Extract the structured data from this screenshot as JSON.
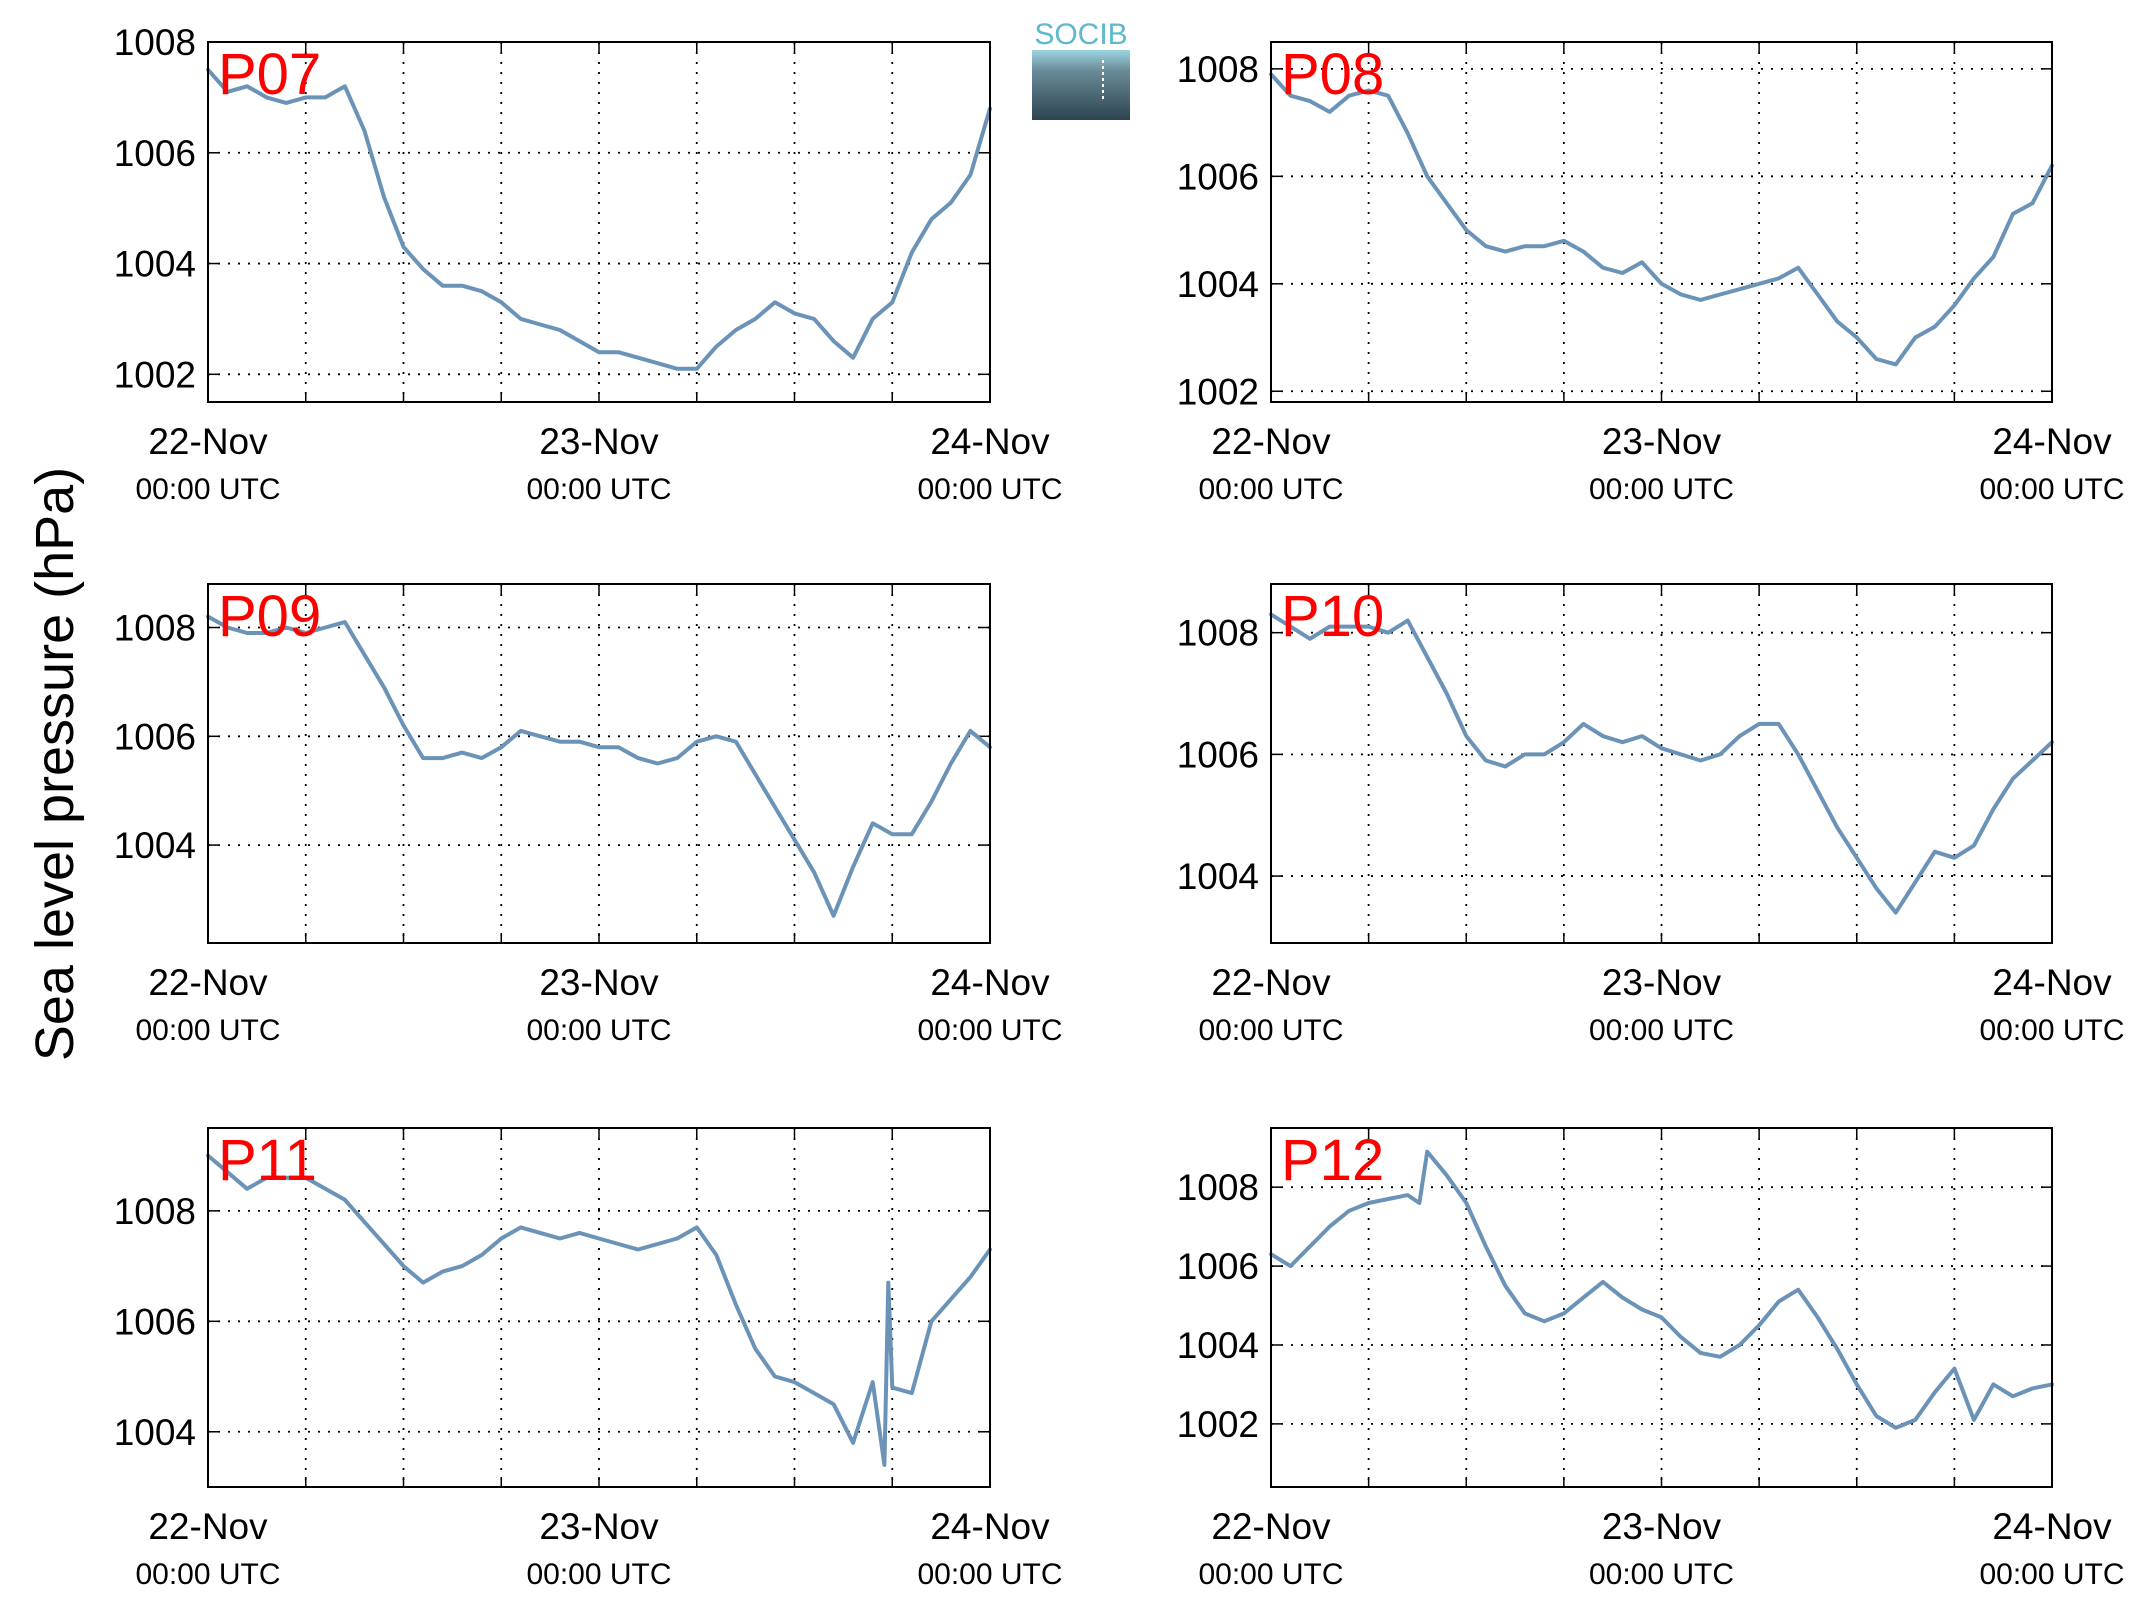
{
  "ylabel": "Sea level pressure (hPa)",
  "logo": {
    "text": "SOCIB",
    "colors": {
      "text": "#5fb8cc",
      "top": "#8fd0dc",
      "bottom": "#2e4450"
    }
  },
  "colors": {
    "series": "#6b93b8",
    "label": "#ff0000",
    "axis": "#000000",
    "grid": "#000000"
  },
  "chart_data": [
    {
      "type": "line",
      "title": "P07",
      "ylim": [
        1001.5,
        1008
      ],
      "yticks": [
        1002,
        1004,
        1006,
        1008
      ],
      "grid": "dotted",
      "xunit": "days since 22-Nov 00:00 UTC",
      "xticks": [
        {
          "date": "22-Nov",
          "time": "00:00 UTC"
        },
        {
          "date": "23-Nov",
          "time": "00:00 UTC"
        },
        {
          "date": "24-Nov",
          "time": "00:00 UTC"
        }
      ],
      "series": [
        {
          "x": [
            0,
            0.05,
            0.1,
            0.15,
            0.2,
            0.25,
            0.3,
            0.35,
            0.4,
            0.45,
            0.5,
            0.55,
            0.6,
            0.65,
            0.7,
            0.75,
            0.8,
            0.85,
            0.9,
            0.95,
            1.0,
            1.05,
            1.1,
            1.15,
            1.2,
            1.25,
            1.3,
            1.35,
            1.4,
            1.45,
            1.5,
            1.55,
            1.6,
            1.65,
            1.7,
            1.75,
            1.8,
            1.85,
            1.9,
            1.95,
            2.0
          ],
          "y": [
            1007.5,
            1007.1,
            1007.2,
            1007.0,
            1006.9,
            1007.0,
            1007.0,
            1007.2,
            1006.4,
            1005.2,
            1004.3,
            1003.9,
            1003.6,
            1003.6,
            1003.5,
            1003.3,
            1003.0,
            1002.9,
            1002.8,
            1002.6,
            1002.4,
            1002.4,
            1002.3,
            1002.2,
            1002.1,
            1002.1,
            1002.5,
            1002.8,
            1003.0,
            1003.3,
            1003.1,
            1003.0,
            1002.6,
            1002.3,
            1003.0,
            1003.3,
            1004.2,
            1004.8,
            1005.1,
            1005.6,
            1006.8
          ]
        }
      ]
    },
    {
      "type": "line",
      "title": "P08",
      "ylim": [
        1001.8,
        1008.5
      ],
      "yticks": [
        1002,
        1004,
        1006,
        1008
      ],
      "grid": "dotted",
      "xunit": "days since 22-Nov 00:00 UTC",
      "xticks": [
        {
          "date": "22-Nov",
          "time": "00:00 UTC"
        },
        {
          "date": "23-Nov",
          "time": "00:00 UTC"
        },
        {
          "date": "24-Nov",
          "time": "00:00 UTC"
        }
      ],
      "series": [
        {
          "x": [
            0,
            0.05,
            0.1,
            0.15,
            0.2,
            0.25,
            0.3,
            0.35,
            0.4,
            0.45,
            0.5,
            0.55,
            0.6,
            0.65,
            0.7,
            0.75,
            0.8,
            0.85,
            0.9,
            0.95,
            1.0,
            1.05,
            1.1,
            1.15,
            1.2,
            1.25,
            1.3,
            1.35,
            1.4,
            1.45,
            1.5,
            1.55,
            1.6,
            1.65,
            1.7,
            1.75,
            1.8,
            1.85,
            1.9,
            1.95,
            2.0
          ],
          "y": [
            1007.9,
            1007.5,
            1007.4,
            1007.2,
            1007.5,
            1007.6,
            1007.5,
            1006.8,
            1006.0,
            1005.5,
            1005.0,
            1004.7,
            1004.6,
            1004.7,
            1004.7,
            1004.8,
            1004.6,
            1004.3,
            1004.2,
            1004.4,
            1004.0,
            1003.8,
            1003.7,
            1003.8,
            1003.9,
            1004.0,
            1004.1,
            1004.3,
            1003.8,
            1003.3,
            1003.0,
            1002.6,
            1002.5,
            1003.0,
            1003.2,
            1003.6,
            1004.1,
            1004.5,
            1005.3,
            1005.5,
            1006.2
          ]
        }
      ]
    },
    {
      "type": "line",
      "title": "P09",
      "ylim": [
        1002.2,
        1008.8
      ],
      "yticks": [
        1004,
        1006,
        1008
      ],
      "grid": "dotted",
      "xunit": "days since 22-Nov 00:00 UTC",
      "xticks": [
        {
          "date": "22-Nov",
          "time": "00:00 UTC"
        },
        {
          "date": "23-Nov",
          "time": "00:00 UTC"
        },
        {
          "date": "24-Nov",
          "time": "00:00 UTC"
        }
      ],
      "series": [
        {
          "x": [
            0,
            0.05,
            0.1,
            0.15,
            0.2,
            0.25,
            0.3,
            0.35,
            0.4,
            0.45,
            0.5,
            0.55,
            0.6,
            0.65,
            0.7,
            0.75,
            0.8,
            0.85,
            0.9,
            0.95,
            1.0,
            1.05,
            1.1,
            1.15,
            1.2,
            1.25,
            1.3,
            1.35,
            1.4,
            1.45,
            1.5,
            1.55,
            1.6,
            1.65,
            1.7,
            1.75,
            1.8,
            1.85,
            1.9,
            1.95,
            2.0
          ],
          "y": [
            1008.2,
            1008.0,
            1007.9,
            1007.9,
            1008.0,
            1007.9,
            1008.0,
            1008.1,
            1007.5,
            1006.9,
            1006.2,
            1005.6,
            1005.6,
            1005.7,
            1005.6,
            1005.8,
            1006.1,
            1006.0,
            1005.9,
            1005.9,
            1005.8,
            1005.8,
            1005.6,
            1005.5,
            1005.6,
            1005.9,
            1006.0,
            1005.9,
            1005.3,
            1004.7,
            1004.1,
            1003.5,
            1002.7,
            1003.6,
            1004.4,
            1004.2,
            1004.2,
            1004.8,
            1005.5,
            1006.1,
            1005.8
          ]
        }
      ]
    },
    {
      "type": "line",
      "title": "P10",
      "ylim": [
        1002.9,
        1008.8
      ],
      "yticks": [
        1004,
        1006,
        1008
      ],
      "grid": "dotted",
      "xunit": "days since 22-Nov 00:00 UTC",
      "xticks": [
        {
          "date": "22-Nov",
          "time": "00:00 UTC"
        },
        {
          "date": "23-Nov",
          "time": "00:00 UTC"
        },
        {
          "date": "24-Nov",
          "time": "00:00 UTC"
        }
      ],
      "series": [
        {
          "x": [
            0,
            0.05,
            0.1,
            0.15,
            0.2,
            0.25,
            0.3,
            0.35,
            0.4,
            0.45,
            0.5,
            0.55,
            0.6,
            0.65,
            0.7,
            0.75,
            0.8,
            0.85,
            0.9,
            0.95,
            1.0,
            1.05,
            1.1,
            1.15,
            1.2,
            1.25,
            1.3,
            1.35,
            1.4,
            1.45,
            1.5,
            1.55,
            1.6,
            1.65,
            1.7,
            1.75,
            1.8,
            1.85,
            1.9,
            1.95,
            2.0
          ],
          "y": [
            1008.3,
            1008.1,
            1007.9,
            1008.1,
            1008.1,
            1008.1,
            1008.0,
            1008.2,
            1007.6,
            1007.0,
            1006.3,
            1005.9,
            1005.8,
            1006.0,
            1006.0,
            1006.2,
            1006.5,
            1006.3,
            1006.2,
            1006.3,
            1006.1,
            1006.0,
            1005.9,
            1006.0,
            1006.3,
            1006.5,
            1006.5,
            1006.0,
            1005.4,
            1004.8,
            1004.3,
            1003.8,
            1003.4,
            1003.9,
            1004.4,
            1004.3,
            1004.5,
            1005.1,
            1005.6,
            1005.9,
            1006.2
          ]
        }
      ]
    },
    {
      "type": "line",
      "title": "P11",
      "ylim": [
        1003,
        1009.5
      ],
      "yticks": [
        1004,
        1006,
        1008
      ],
      "grid": "dotted",
      "xunit": "days since 22-Nov 00:00 UTC",
      "xticks": [
        {
          "date": "22-Nov",
          "time": "00:00 UTC"
        },
        {
          "date": "23-Nov",
          "time": "00:00 UTC"
        },
        {
          "date": "24-Nov",
          "time": "00:00 UTC"
        }
      ],
      "series": [
        {
          "x": [
            0,
            0.05,
            0.1,
            0.15,
            0.2,
            0.25,
            0.3,
            0.35,
            0.4,
            0.45,
            0.5,
            0.55,
            0.6,
            0.65,
            0.7,
            0.75,
            0.8,
            0.85,
            0.9,
            0.95,
            1.0,
            1.05,
            1.1,
            1.15,
            1.2,
            1.25,
            1.3,
            1.35,
            1.4,
            1.45,
            1.5,
            1.55,
            1.6,
            1.65,
            1.7,
            1.73,
            1.74,
            1.75,
            1.8,
            1.85,
            1.9,
            1.95,
            2.0
          ],
          "y": [
            1009.0,
            1008.7,
            1008.4,
            1008.6,
            1008.6,
            1008.6,
            1008.4,
            1008.2,
            1007.8,
            1007.4,
            1007.0,
            1006.7,
            1006.9,
            1007.0,
            1007.2,
            1007.5,
            1007.7,
            1007.6,
            1007.5,
            1007.6,
            1007.5,
            1007.4,
            1007.3,
            1007.4,
            1007.5,
            1007.7,
            1007.2,
            1006.3,
            1005.5,
            1005.0,
            1004.9,
            1004.7,
            1004.5,
            1003.8,
            1004.9,
            1003.4,
            1006.7,
            1004.8,
            1004.7,
            1006.0,
            1006.4,
            1006.8,
            1007.3
          ]
        }
      ]
    },
    {
      "type": "line",
      "title": "P12",
      "ylim": [
        1000.4,
        1009.5
      ],
      "yticks": [
        1002,
        1004,
        1006,
        1008
      ],
      "grid": "dotted",
      "xunit": "days since 22-Nov 00:00 UTC",
      "xticks": [
        {
          "date": "22-Nov",
          "time": "00:00 UTC"
        },
        {
          "date": "23-Nov",
          "time": "00:00 UTC"
        },
        {
          "date": "24-Nov",
          "time": "00:00 UTC"
        }
      ],
      "series": [
        {
          "x": [
            0,
            0.05,
            0.1,
            0.15,
            0.2,
            0.25,
            0.3,
            0.35,
            0.38,
            0.4,
            0.45,
            0.5,
            0.55,
            0.6,
            0.65,
            0.7,
            0.75,
            0.8,
            0.85,
            0.9,
            0.95,
            1.0,
            1.05,
            1.1,
            1.15,
            1.2,
            1.25,
            1.3,
            1.35,
            1.4,
            1.45,
            1.5,
            1.55,
            1.6,
            1.65,
            1.7,
            1.75,
            1.8,
            1.85,
            1.9,
            1.95,
            2.0
          ],
          "y": [
            1006.3,
            1006.0,
            1006.5,
            1007.0,
            1007.4,
            1007.6,
            1007.7,
            1007.8,
            1007.6,
            1008.9,
            1008.3,
            1007.6,
            1006.5,
            1005.5,
            1004.8,
            1004.6,
            1004.8,
            1005.2,
            1005.6,
            1005.2,
            1004.9,
            1004.7,
            1004.2,
            1003.8,
            1003.7,
            1004.0,
            1004.5,
            1005.1,
            1005.4,
            1004.7,
            1003.9,
            1003.0,
            1002.2,
            1001.9,
            1002.1,
            1002.8,
            1003.4,
            1002.1,
            1003.0,
            1002.7,
            1002.9,
            1003.0
          ]
        }
      ]
    }
  ]
}
